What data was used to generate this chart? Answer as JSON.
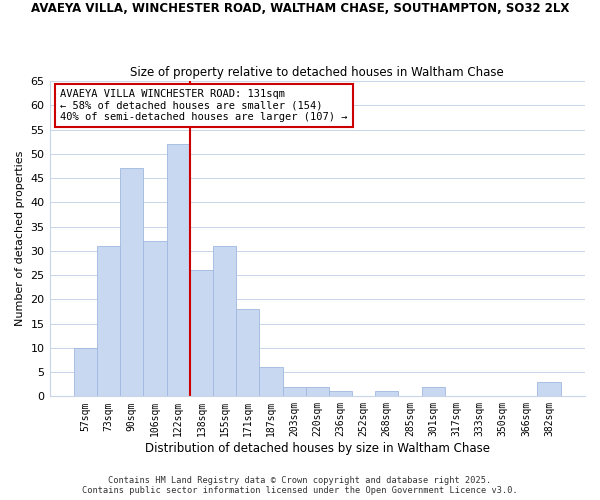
{
  "title_line1": "AVAEYA VILLA, WINCHESTER ROAD, WALTHAM CHASE, SOUTHAMPTON, SO32 2LX",
  "title_line2": "Size of property relative to detached houses in Waltham Chase",
  "xlabel": "Distribution of detached houses by size in Waltham Chase",
  "ylabel": "Number of detached properties",
  "bin_labels": [
    "57sqm",
    "73sqm",
    "90sqm",
    "106sqm",
    "122sqm",
    "138sqm",
    "155sqm",
    "171sqm",
    "187sqm",
    "203sqm",
    "220sqm",
    "236sqm",
    "252sqm",
    "268sqm",
    "285sqm",
    "301sqm",
    "317sqm",
    "333sqm",
    "350sqm",
    "366sqm",
    "382sqm"
  ],
  "bar_heights": [
    10,
    31,
    47,
    32,
    52,
    26,
    31,
    18,
    6,
    2,
    2,
    1,
    0,
    1,
    0,
    2,
    0,
    0,
    0,
    0,
    3
  ],
  "bar_color": "#c8d8f0",
  "bar_edge_color": "#a0b8e0",
  "vline_x": 4.5,
  "vline_color": "#cc0000",
  "annotation_text": "AVAEYA VILLA WINCHESTER ROAD: 131sqm\n← 58% of detached houses are smaller (154)\n40% of semi-detached houses are larger (107) →",
  "annotation_box_color": "white",
  "annotation_box_edge": "#cc0000",
  "ylim": [
    0,
    65
  ],
  "yticks": [
    0,
    5,
    10,
    15,
    20,
    25,
    30,
    35,
    40,
    45,
    50,
    55,
    60,
    65
  ],
  "footnote1": "Contains HM Land Registry data © Crown copyright and database right 2025.",
  "footnote2": "Contains public sector information licensed under the Open Government Licence v3.0.",
  "bg_color": "#ffffff",
  "grid_color": "#c8d4e8"
}
